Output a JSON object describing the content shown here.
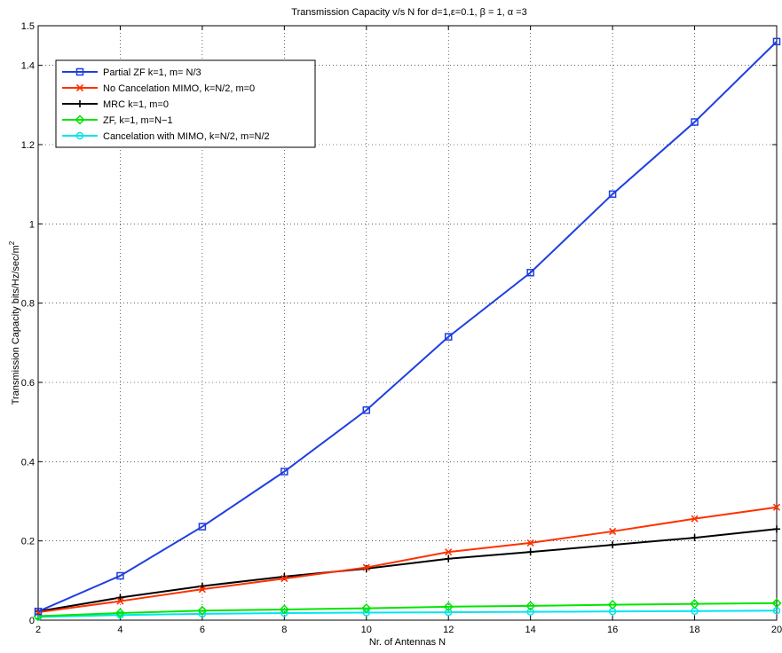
{
  "chart_data": {
    "type": "line",
    "title": "Transmission Capacity v/s N for d=1,ε=0.1, β = 1, α =3",
    "xlabel": "Nr. of Antennas N",
    "ylabel": "Transmission Capacity bits/Hz/sec/m",
    "ylabel_superscript": "2",
    "xlim": [
      2,
      20
    ],
    "ylim": [
      0,
      1.5
    ],
    "xticks": [
      2,
      4,
      6,
      8,
      10,
      12,
      14,
      16,
      18,
      20
    ],
    "yticks": [
      0,
      0.2,
      0.4,
      0.6,
      0.8,
      1,
      1.2,
      1.4,
      1.5
    ],
    "ytick_labels": [
      "0",
      "0.2",
      "0.4",
      "0.6",
      "0.8",
      "1",
      "1.2",
      "1.4",
      "1.5"
    ],
    "grid": true,
    "legend_position": "top-left",
    "x": [
      2,
      4,
      6,
      8,
      10,
      12,
      14,
      16,
      18,
      20
    ],
    "series": [
      {
        "name": "Partial ZF k=1, m= N/3",
        "color": "#1f3fe0",
        "marker": "square",
        "values": [
          0.022,
          0.112,
          0.236,
          0.375,
          0.53,
          0.715,
          0.877,
          1.075,
          1.257,
          1.46
        ]
      },
      {
        "name": "No Cancelation MIMO, k=N/2, m=0",
        "color": "#ff3000",
        "marker": "x",
        "values": [
          0.02,
          0.048,
          0.078,
          0.105,
          0.133,
          0.172,
          0.195,
          0.224,
          0.256,
          0.285
        ]
      },
      {
        "name": "MRC k=1, m=0",
        "color": "#000000",
        "marker": "plus",
        "values": [
          0.022,
          0.057,
          0.086,
          0.11,
          0.13,
          0.155,
          0.172,
          0.19,
          0.208,
          0.23
        ]
      },
      {
        "name": "ZF, k=1, m=N−1",
        "color": "#00e600",
        "marker": "diamond",
        "values": [
          0.01,
          0.018,
          0.024,
          0.027,
          0.03,
          0.034,
          0.036,
          0.039,
          0.041,
          0.043
        ]
      },
      {
        "name": "Cancelation with MIMO, k=N/2, m=N/2",
        "color": "#00e5ee",
        "marker": "circle",
        "values": [
          0.008,
          0.013,
          0.016,
          0.018,
          0.019,
          0.02,
          0.021,
          0.022,
          0.023,
          0.024
        ]
      }
    ]
  }
}
